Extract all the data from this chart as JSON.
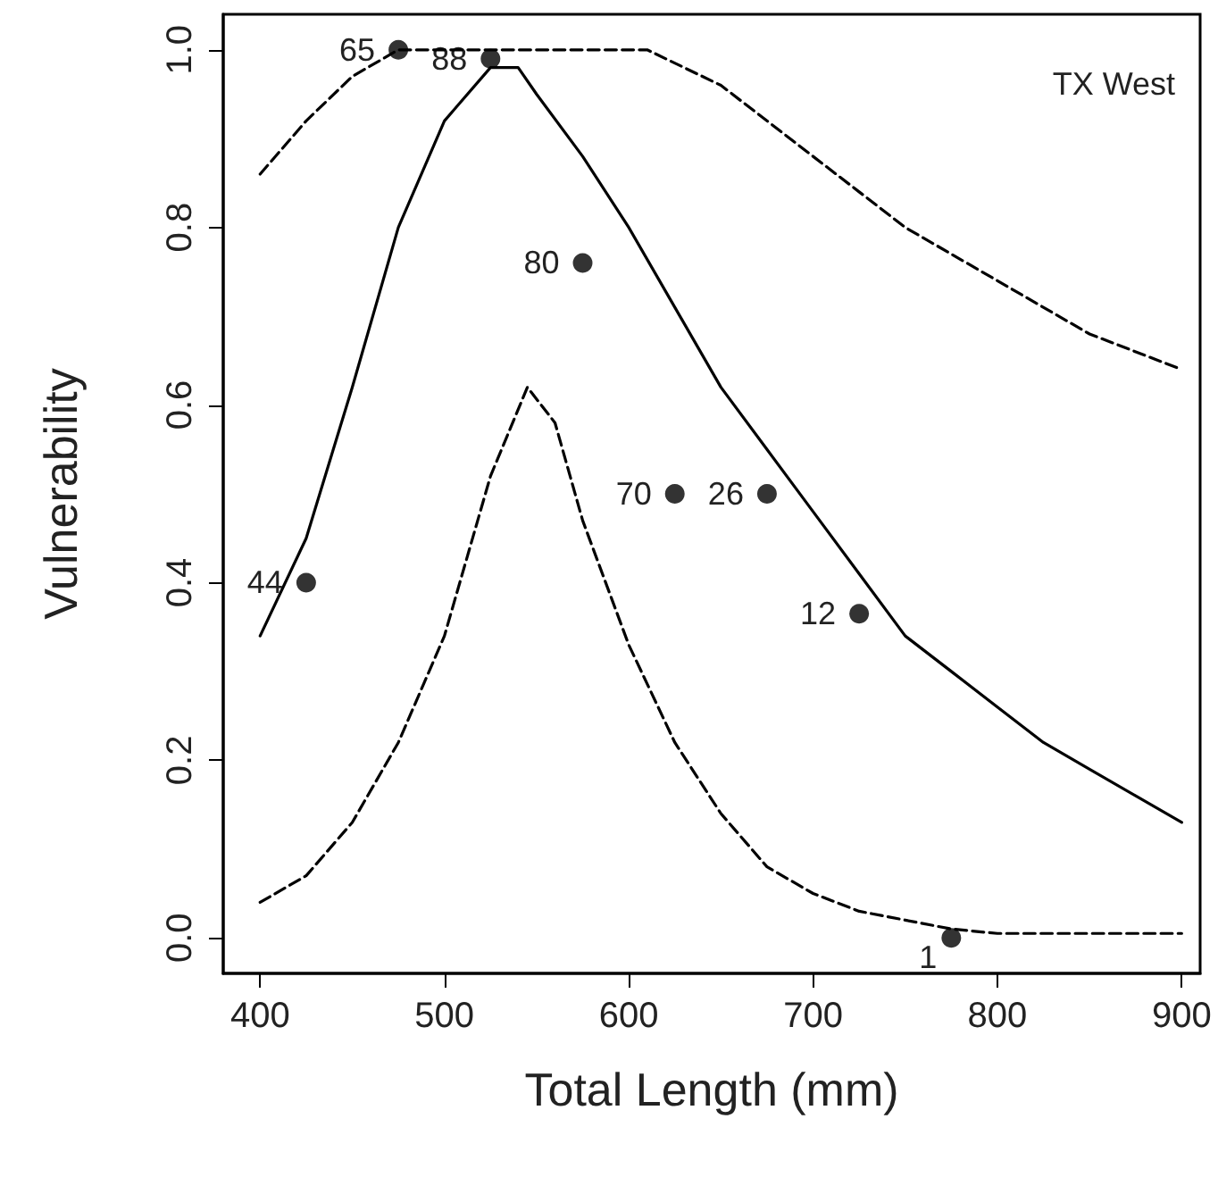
{
  "chart_data": {
    "type": "scatter",
    "xlabel": "Total Length (mm)",
    "ylabel": "Vulnerability",
    "xlim": [
      380,
      910
    ],
    "ylim": [
      -0.04,
      1.04
    ],
    "xticks": [
      400,
      500,
      600,
      700,
      800,
      900
    ],
    "yticks": [
      {
        "value": 0,
        "label": "0.0"
      },
      {
        "value": 0.2,
        "label": "0.2"
      },
      {
        "value": 0.4,
        "label": "0.4"
      },
      {
        "value": 0.6,
        "label": "0.6"
      },
      {
        "value": 0.8,
        "label": "0.8"
      },
      {
        "value": 1,
        "label": "1.0"
      }
    ],
    "grid": false,
    "series": [
      {
        "color": "#000000",
        "marker": "circle",
        "x": [
          425,
          475,
          525,
          575,
          625,
          675,
          725,
          775
        ],
        "values": [
          0.4,
          1.0,
          0.99,
          0.76,
          0.5,
          0.5,
          0.365,
          0.0
        ]
      },
      {
        "type": "line",
        "color": "#000000",
        "line_style": "solid",
        "marker": "none",
        "x": [
          400,
          425,
          450,
          475,
          500,
          525,
          540,
          550,
          575,
          600,
          625,
          650,
          675,
          700,
          725,
          750,
          775,
          800,
          825,
          850,
          875,
          900
        ],
        "values": [
          0.34,
          0.45,
          0.62,
          0.8,
          0.92,
          0.98,
          0.98,
          0.95,
          0.88,
          0.8,
          0.71,
          0.62,
          0.55,
          0.48,
          0.41,
          0.34,
          0.3,
          0.26,
          0.22,
          0.19,
          0.16,
          0.13
        ]
      },
      {
        "type": "line",
        "color": "#000000",
        "line_style": "dashed",
        "marker": "none",
        "x": [
          400,
          425,
          450,
          475,
          500,
          550,
          610,
          650,
          700,
          725,
          750,
          800,
          850,
          900
        ],
        "values": [
          0.86,
          0.92,
          0.97,
          1.0,
          1.0,
          1.0,
          1.0,
          0.96,
          0.88,
          0.84,
          0.8,
          0.74,
          0.68,
          0.64
        ]
      },
      {
        "type": "line",
        "color": "#000000",
        "line_style": "dashed",
        "marker": "none",
        "x": [
          400,
          425,
          450,
          475,
          500,
          525,
          545,
          560,
          575,
          600,
          625,
          650,
          675,
          700,
          725,
          750,
          775,
          800,
          900
        ],
        "values": [
          0.04,
          0.07,
          0.13,
          0.22,
          0.34,
          0.52,
          0.62,
          0.58,
          0.47,
          0.33,
          0.22,
          0.14,
          0.08,
          0.05,
          0.03,
          0.02,
          0.01,
          0.005,
          0.005
        ]
      }
    ],
    "annotations": [
      {
        "text": "44",
        "x": 425,
        "y": 0.4
      },
      {
        "text": "65",
        "x": 475,
        "y": 1.0
      },
      {
        "text": "88",
        "x": 525,
        "y": 0.99
      },
      {
        "text": "80",
        "x": 575,
        "y": 0.76
      },
      {
        "text": "70",
        "x": 625,
        "y": 0.5
      },
      {
        "text": "26",
        "x": 675,
        "y": 0.5
      },
      {
        "text": "12",
        "x": 725,
        "y": 0.365
      },
      {
        "text": "1",
        "x": 775,
        "y": 0.0
      },
      "TX West"
    ]
  }
}
